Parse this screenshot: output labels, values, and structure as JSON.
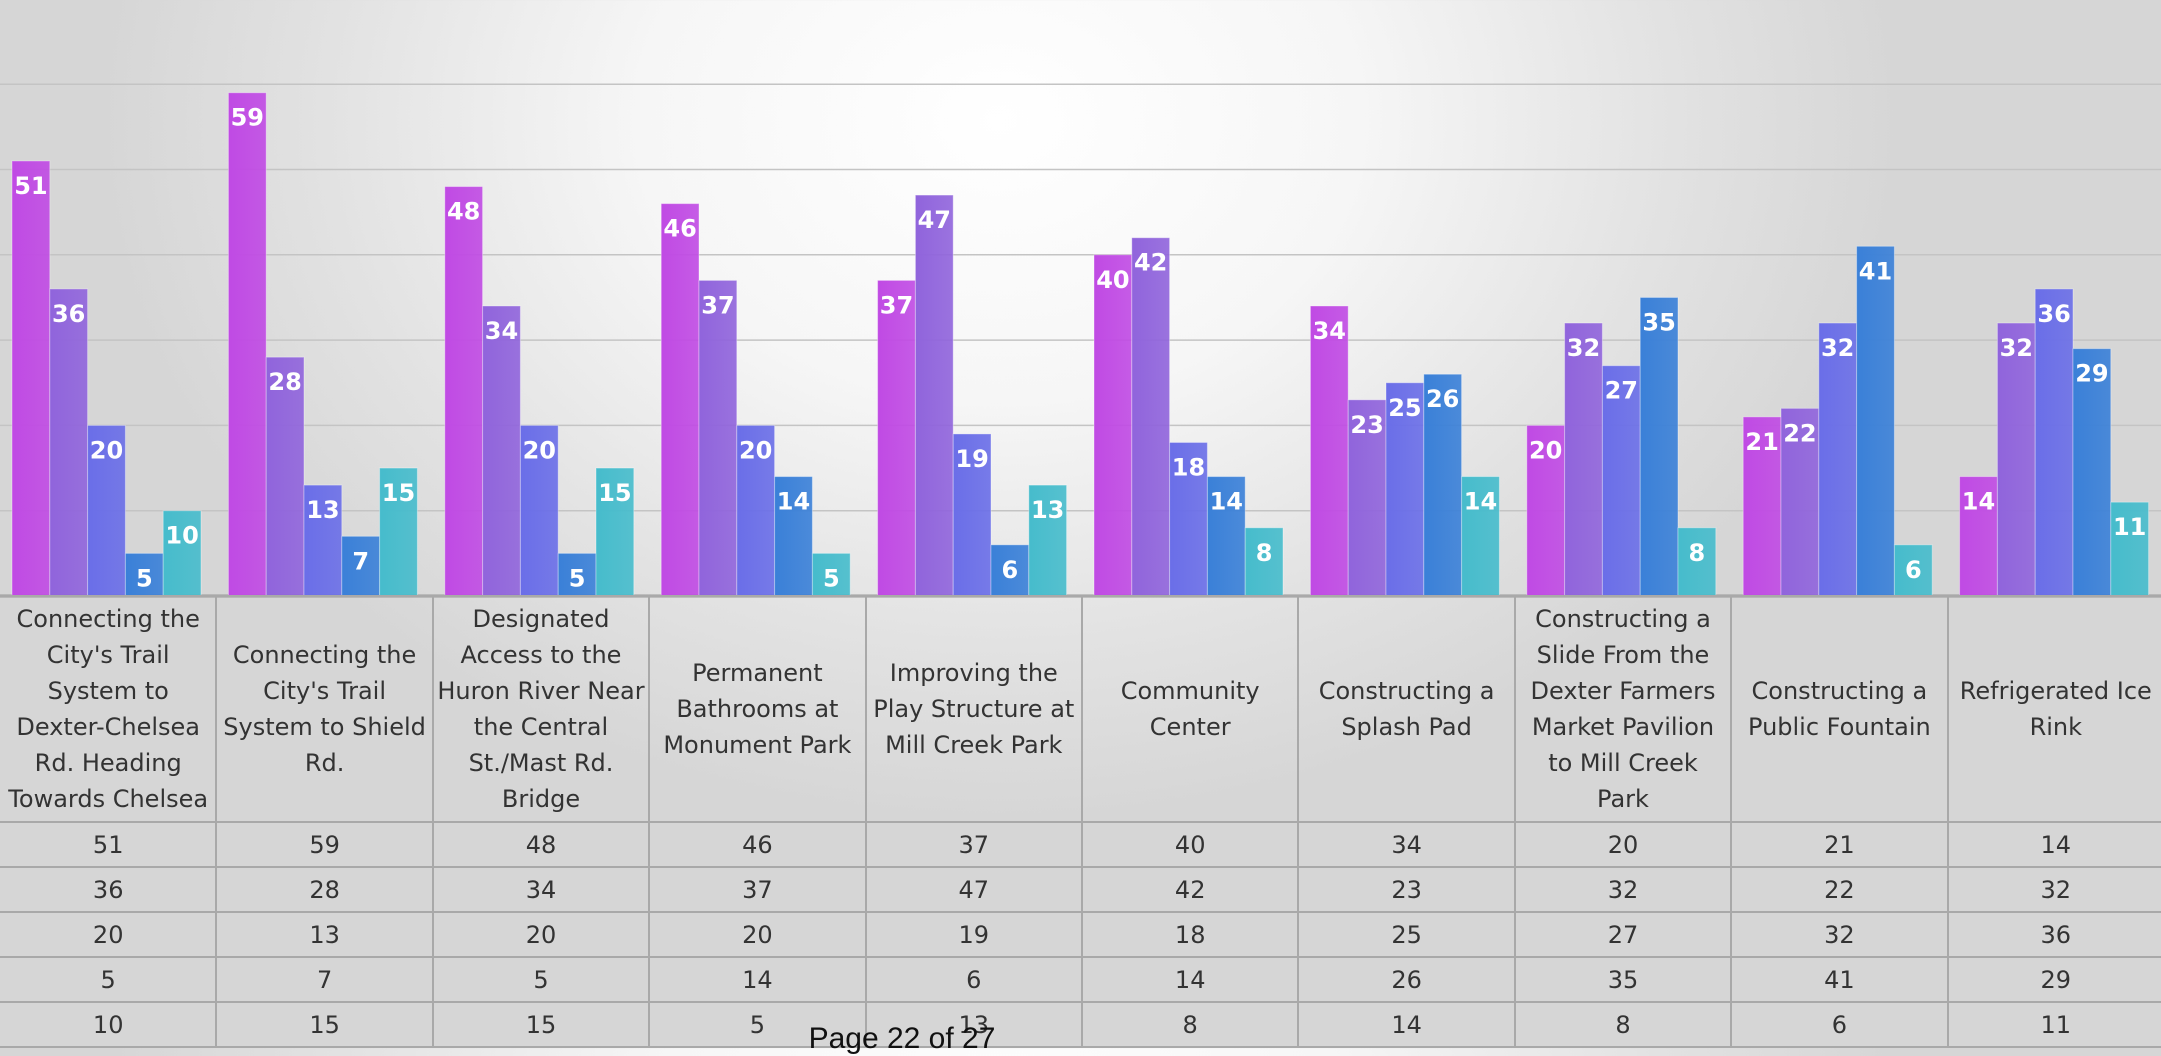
{
  "chart_data": {
    "type": "bar",
    "categories": [
      "Connecting the City's Trail System to Dexter-Chelsea Rd. Heading Towards Chelsea",
      "Connecting the City's Trail System to Shield Rd.",
      "Designated Access to the Huron River Near the Central St./Mast Rd. Bridge",
      "Permanent Bathrooms at Monument Park",
      "Improving the Play Structure at Mill Creek Park",
      "Community Center",
      "Constructing a Splash Pad",
      "Constructing a Slide From the Dexter Farmers Market Pavilion to Mill Creek Park",
      "Constructing a Public Fountain",
      "Refrigerated Ice Rink"
    ],
    "series": [
      {
        "values": [
          51,
          59,
          48,
          46,
          37,
          40,
          34,
          20,
          21,
          14
        ]
      },
      {
        "values": [
          36,
          28,
          34,
          37,
          47,
          42,
          23,
          32,
          22,
          32
        ]
      },
      {
        "values": [
          20,
          13,
          20,
          20,
          19,
          18,
          25,
          27,
          32,
          36
        ]
      },
      {
        "values": [
          5,
          7,
          5,
          14,
          6,
          14,
          26,
          35,
          41,
          29
        ]
      },
      {
        "values": [
          10,
          15,
          15,
          5,
          13,
          8,
          14,
          8,
          6,
          11
        ]
      }
    ],
    "ylim": [
      0,
      60
    ],
    "grid": true,
    "data_labels": true,
    "colors": [
      "#c04ae4",
      "#9064dc",
      "#6a6ee8",
      "#3a80d8",
      "#46bccc"
    ]
  },
  "page_number": "Page 22 of 27"
}
